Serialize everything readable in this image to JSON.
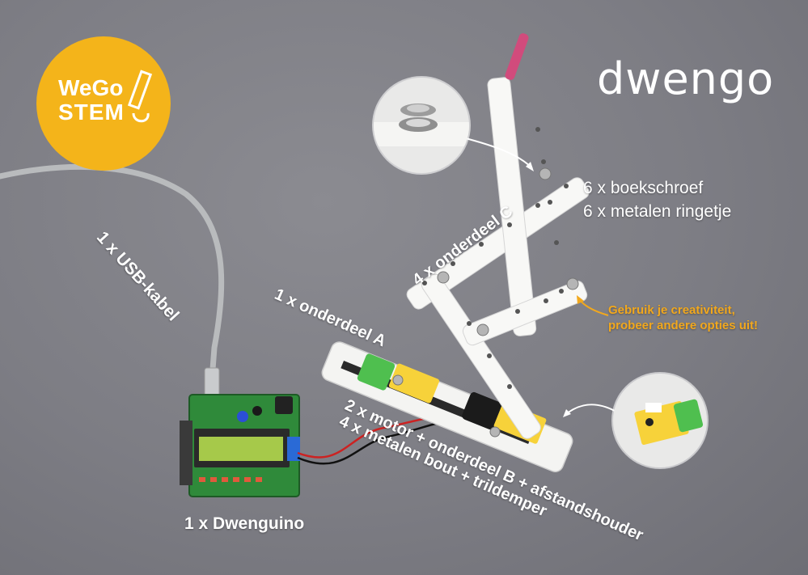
{
  "logos": {
    "wegostem_line1": "WeGo",
    "wegostem_line2": "STEM",
    "dwengo": "dwengo"
  },
  "labels": {
    "usb_cable": "1 x USB-kabel",
    "part_c": "4 x onderdeel C",
    "screws": "6 x boekschroef",
    "rings": "6 x metalen ringetje",
    "part_a": "1 x onderdeel A",
    "tip_line1": "Gebruik je creativiteit,",
    "tip_line2": "probeer andere opties uit!",
    "motor": "2 x motor + onderdeel B + afstandshouder",
    "bolts": "4 x metalen bout + trildemper",
    "dwenguino": "1 x Dwenguino"
  },
  "colors": {
    "background": "#7d7d84",
    "logo_yellow": "#f4b41a",
    "tip_orange": "#f2a81d",
    "motor_green": "#4fbf4f",
    "gear_yellow": "#f7d23a",
    "board_green": "#2f8a3a"
  }
}
